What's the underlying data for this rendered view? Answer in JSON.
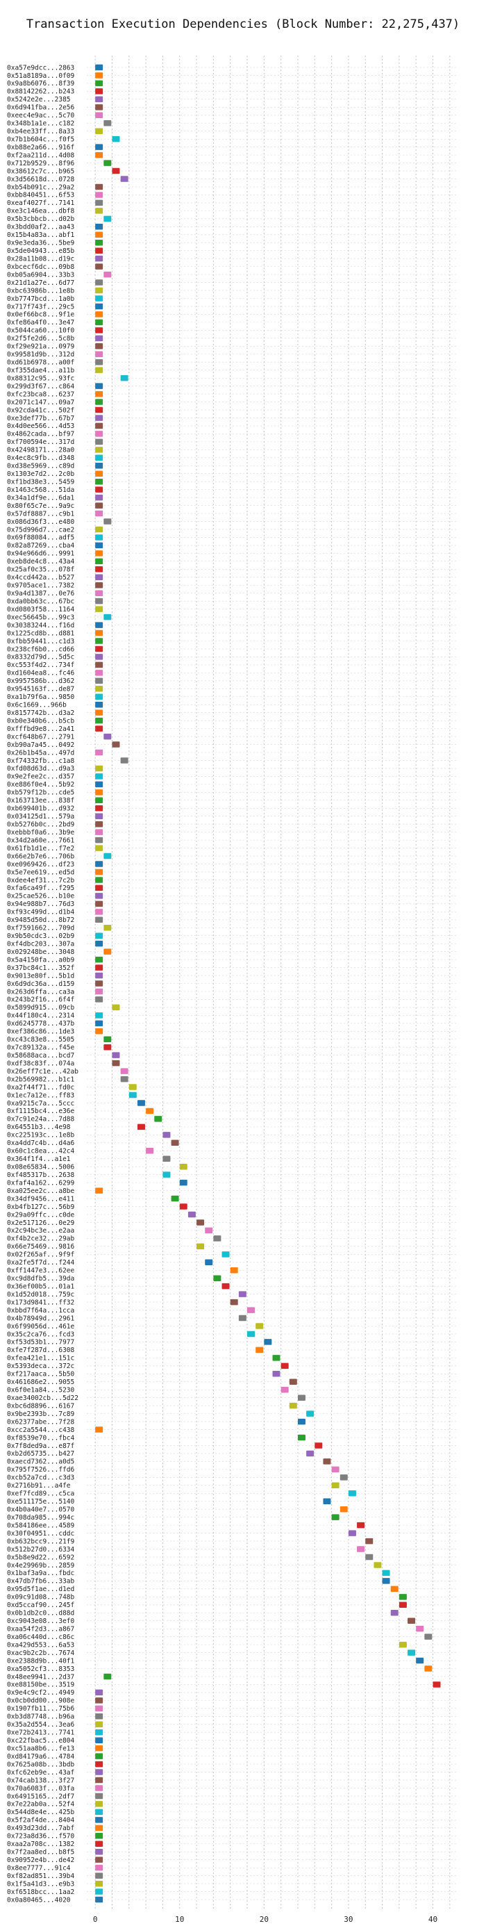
{
  "chart_data": {
    "type": "bar",
    "orientation": "horizontal-gantt",
    "title": "Transaction Execution Dependencies (Block Number: 22,275,437)",
    "xlabel": "",
    "ylabel": "",
    "xlim": [
      -1,
      43
    ],
    "xticks": [
      0,
      10,
      20,
      30,
      40
    ],
    "grid": true,
    "palette": [
      "#1f77b4",
      "#ff7f0e",
      "#2ca02c",
      "#d62728",
      "#9467bd",
      "#8c564b",
      "#e377c2",
      "#7f7f7f",
      "#bcbd22",
      "#17becf"
    ],
    "transactions": [
      {
        "label": "0xa57e9dcc...2863",
        "start": 0
      },
      {
        "label": "0x51a8189a...0f09",
        "start": 0
      },
      {
        "label": "0x9a8b6076...8f39",
        "start": 0
      },
      {
        "label": "0x88142262...b243",
        "start": 0
      },
      {
        "label": "0x5242e2e...2385",
        "start": 0
      },
      {
        "label": "0x6d941fba...2e56",
        "start": 0
      },
      {
        "label": "0xeec4e9ac...5c70",
        "start": 0
      },
      {
        "label": "0x348b1a1e...c182",
        "start": 1
      },
      {
        "label": "0xb4ee33ff...8a33",
        "start": 0
      },
      {
        "label": "0x7b1b604c...f0f5",
        "start": 2
      },
      {
        "label": "0xb88e2a66...916f",
        "start": 0
      },
      {
        "label": "0xf2aa211d...4d08",
        "start": 0
      },
      {
        "label": "0x712b9529...8f96",
        "start": 1
      },
      {
        "label": "0x38612c7c...b965",
        "start": 2
      },
      {
        "label": "0x3d56618d...0728",
        "start": 3
      },
      {
        "label": "0xb54b091c...29a2",
        "start": 0
      },
      {
        "label": "0xbb840451...6f53",
        "start": 0
      },
      {
        "label": "0xeaf4027f...7141",
        "start": 0
      },
      {
        "label": "0xe3c146ea...dbf8",
        "start": 0
      },
      {
        "label": "0x5b3cbbcb...d02b",
        "start": 1
      },
      {
        "label": "0x3bdd0af2...aa43",
        "start": 0
      },
      {
        "label": "0x15b4a83a...abf1",
        "start": 0
      },
      {
        "label": "0x9e3eda36...5be9",
        "start": 0
      },
      {
        "label": "0x5de04943...e85b",
        "start": 0
      },
      {
        "label": "0x28a11b08...d19c",
        "start": 0
      },
      {
        "label": "0xbcecf6dc...09b8",
        "start": 0
      },
      {
        "label": "0xb05a6904...33b3",
        "start": 1
      },
      {
        "label": "0x21d1a27e...6d77",
        "start": 0
      },
      {
        "label": "0xbc63986b...1e8b",
        "start": 0
      },
      {
        "label": "0xb7747bcd...1a0b",
        "start": 0
      },
      {
        "label": "0x717f743f...29c5",
        "start": 0
      },
      {
        "label": "0x0ef66bc8...9f1e",
        "start": 0
      },
      {
        "label": "0xfe86a4f0...3e47",
        "start": 0
      },
      {
        "label": "0x5044ca60...10f0",
        "start": 0
      },
      {
        "label": "0x2f5fe2d6...5c8b",
        "start": 0
      },
      {
        "label": "0xf29e921a...0979",
        "start": 0
      },
      {
        "label": "0x99581d9b...312d",
        "start": 0
      },
      {
        "label": "0xd61b6978...a00f",
        "start": 0
      },
      {
        "label": "0xf355dae4...a11b",
        "start": 0
      },
      {
        "label": "0x88312c95...93fc",
        "start": 3
      },
      {
        "label": "0x299d3f67...c864",
        "start": 0
      },
      {
        "label": "0xfc23bca8...6237",
        "start": 0
      },
      {
        "label": "0x2071c147...09a7",
        "start": 0
      },
      {
        "label": "0x92cda41c...502f",
        "start": 0
      },
      {
        "label": "0xe3def77b...67b7",
        "start": 0
      },
      {
        "label": "0x4d0ee566...4d53",
        "start": 0
      },
      {
        "label": "0x4862cada...bf97",
        "start": 0
      },
      {
        "label": "0xf700594e...317d",
        "start": 0
      },
      {
        "label": "0x42498171...28a0",
        "start": 0
      },
      {
        "label": "0x4ec8c9fb...d348",
        "start": 0
      },
      {
        "label": "0xd38e5969...c89d",
        "start": 0
      },
      {
        "label": "0x1303e7d2...2c0b",
        "start": 0
      },
      {
        "label": "0xf1bd38e3...5459",
        "start": 0
      },
      {
        "label": "0x1463c568...51da",
        "start": 0
      },
      {
        "label": "0x34a1df9e...6da1",
        "start": 0
      },
      {
        "label": "0x80f65c7e...9a9c",
        "start": 0
      },
      {
        "label": "0x57df8887...c9b1",
        "start": 0
      },
      {
        "label": "0x086d36f3...e480",
        "start": 1
      },
      {
        "label": "0x75d996d7...cae2",
        "start": 0
      },
      {
        "label": "0x69f88084...adf5",
        "start": 0
      },
      {
        "label": "0x82a87269...cba4",
        "start": 0
      },
      {
        "label": "0x94e966d6...9991",
        "start": 0
      },
      {
        "label": "0xeb8de4c8...43a4",
        "start": 0
      },
      {
        "label": "0x25af0c35...078f",
        "start": 0
      },
      {
        "label": "0x4ccd442a...b527",
        "start": 0
      },
      {
        "label": "0x9705ace1...7382",
        "start": 0
      },
      {
        "label": "0x9a4d1387...0e76",
        "start": 0
      },
      {
        "label": "0xda0bb63c...67bc",
        "start": 0
      },
      {
        "label": "0xd0803f58...1164",
        "start": 0
      },
      {
        "label": "0xec56645b...99c3",
        "start": 1
      },
      {
        "label": "0x30383244...f16d",
        "start": 0
      },
      {
        "label": "0x1225cd8b...d881",
        "start": 0
      },
      {
        "label": "0xfbb59441...c1d3",
        "start": 0
      },
      {
        "label": "0x238cf6b0...cd66",
        "start": 0
      },
      {
        "label": "0x8332d79d...5d5c",
        "start": 0
      },
      {
        "label": "0xc553f4d2...734f",
        "start": 0
      },
      {
        "label": "0xd1604ea8...fc46",
        "start": 0
      },
      {
        "label": "0x9957586b...d362",
        "start": 0
      },
      {
        "label": "0x9545163f...de87",
        "start": 0
      },
      {
        "label": "0xa1b79f6a...9850",
        "start": 0
      },
      {
        "label": "0x6c1669...966b",
        "start": 0
      },
      {
        "label": "0x8157742b...d3a2",
        "start": 0
      },
      {
        "label": "0xb0e340b6...b5cb",
        "start": 0
      },
      {
        "label": "0xfffbd9e8...2a41",
        "start": 0
      },
      {
        "label": "0xcf648b67...2791",
        "start": 1
      },
      {
        "label": "0xb90a7a45...0492",
        "start": 2
      },
      {
        "label": "0x26b1b45a...497d",
        "start": 0
      },
      {
        "label": "0xf74332fb...c1a8",
        "start": 3
      },
      {
        "label": "0xfd08d63d...d9a3",
        "start": 0
      },
      {
        "label": "0x9e2fee2c...d357",
        "start": 0
      },
      {
        "label": "0xe886f0e4...5b92",
        "start": 0
      },
      {
        "label": "0xb579f12b...cde5",
        "start": 0
      },
      {
        "label": "0x163713ee...838f",
        "start": 0
      },
      {
        "label": "0xb699401b...d932",
        "start": 0
      },
      {
        "label": "0x034125d1...579a",
        "start": 0
      },
      {
        "label": "0xb5276b0c...2bd9",
        "start": 0
      },
      {
        "label": "0xebbbf0a6...3b9e",
        "start": 0
      },
      {
        "label": "0x34d2a60e...7661",
        "start": 0
      },
      {
        "label": "0x61fb1d1e...f7e2",
        "start": 0
      },
      {
        "label": "0x66e2b7e6...706b",
        "start": 1
      },
      {
        "label": "0xe0969426...df23",
        "start": 0
      },
      {
        "label": "0x5e7ee619...ed5d",
        "start": 0
      },
      {
        "label": "0xdee4ef31...7c2b",
        "start": 0
      },
      {
        "label": "0xfa6ca49f...f295",
        "start": 0
      },
      {
        "label": "0x25cae526...b10e",
        "start": 0
      },
      {
        "label": "0x94e988b7...76d3",
        "start": 0
      },
      {
        "label": "0xf93c499d...d1b4",
        "start": 0
      },
      {
        "label": "0x9485d50d...8b72",
        "start": 0
      },
      {
        "label": "0xf7591662...709d",
        "start": 1
      },
      {
        "label": "0x9b50cdc3...02b9",
        "start": 0
      },
      {
        "label": "0xf4dbc203...307a",
        "start": 0
      },
      {
        "label": "0x029248be...3048",
        "start": 1
      },
      {
        "label": "0x5a4150fa...a0b9",
        "start": 0
      },
      {
        "label": "0x37bc84c1...352f",
        "start": 0
      },
      {
        "label": "0x9013e80f...5b1d",
        "start": 0
      },
      {
        "label": "0x6d9dc36a...d159",
        "start": 0
      },
      {
        "label": "0x263d6ffa...ca3a",
        "start": 0
      },
      {
        "label": "0x243b2f16...6f4f",
        "start": 0
      },
      {
        "label": "0x5899d915...09cb",
        "start": 2
      },
      {
        "label": "0x44f180c4...2314",
        "start": 0
      },
      {
        "label": "0xd6245778...437b",
        "start": 0
      },
      {
        "label": "0xef386c86...1de3",
        "start": 0
      },
      {
        "label": "0xc43c83e8...5505",
        "start": 1
      },
      {
        "label": "0x7c89132a...f45e",
        "start": 1
      },
      {
        "label": "0x58688aca...bcd7",
        "start": 2
      },
      {
        "label": "0xdf38c83f...074a",
        "start": 2
      },
      {
        "label": "0x26eff7c1e...42ab",
        "start": 3
      },
      {
        "label": "0x2b569982...b1c1",
        "start": 3
      },
      {
        "label": "0xa2f44f71...fd0c",
        "start": 4
      },
      {
        "label": "0x1ec7a12e...ff83",
        "start": 4
      },
      {
        "label": "0xa9215c7a...5ccc",
        "start": 5
      },
      {
        "label": "0xf1115bc4...e36e",
        "start": 6
      },
      {
        "label": "0x7c91e24a...7d88",
        "start": 7
      },
      {
        "label": "0x64551b3...4e98",
        "start": 5
      },
      {
        "label": "0xc225193c...1e8b",
        "start": 8
      },
      {
        "label": "0xa4dd7c4b...d4a6",
        "start": 9
      },
      {
        "label": "0x60c1c8ea...42c4",
        "start": 6
      },
      {
        "label": "0x364f1f4...a1e1",
        "start": 8
      },
      {
        "label": "0x08e65834...5006",
        "start": 10
      },
      {
        "label": "0xf485317b...2638",
        "start": 8
      },
      {
        "label": "0xfaf4a162...6299",
        "start": 10
      },
      {
        "label": "0xa025ee2c...a8be",
        "start": 0
      },
      {
        "label": "0x34df9456...e411",
        "start": 9
      },
      {
        "label": "0xb4fb127c...56b9",
        "start": 10
      },
      {
        "label": "0x29a09ffc...c0de",
        "start": 11
      },
      {
        "label": "0x2e517126...0e29",
        "start": 12
      },
      {
        "label": "0x2c94bc3e...e2aa",
        "start": 13
      },
      {
        "label": "0xf4b2ce32...29ab",
        "start": 14
      },
      {
        "label": "0x66e75469...9816",
        "start": 12
      },
      {
        "label": "0x02f265af...9f9f",
        "start": 15
      },
      {
        "label": "0xa2fe5f7d...f244",
        "start": 13
      },
      {
        "label": "0xff1447e3...62ee",
        "start": 16
      },
      {
        "label": "0xc9d8dfb5...39da",
        "start": 14
      },
      {
        "label": "0x36ef00b5...01a1",
        "start": 15
      },
      {
        "label": "0x1d52d018...759c",
        "start": 17
      },
      {
        "label": "0x173d9841...ff32",
        "start": 16
      },
      {
        "label": "0xbbd7f64a...1cca",
        "start": 18
      },
      {
        "label": "0x4b78949d...2961",
        "start": 17
      },
      {
        "label": "0x6f99056d...461e",
        "start": 19
      },
      {
        "label": "0x35c2ca76...fcd3",
        "start": 18
      },
      {
        "label": "0xf53d53b1...7977",
        "start": 20
      },
      {
        "label": "0xfe7f287d...6308",
        "start": 19
      },
      {
        "label": "0xfea421e1...151c",
        "start": 21
      },
      {
        "label": "0x5393deca...372c",
        "start": 22
      },
      {
        "label": "0xf217aaca...5b50",
        "start": 21
      },
      {
        "label": "0x461686e2...9055",
        "start": 23
      },
      {
        "label": "0x6f0e1a84...5230",
        "start": 22
      },
      {
        "label": "0xae34002cb...5d22",
        "start": 24
      },
      {
        "label": "0xbc6d8896...6167",
        "start": 23
      },
      {
        "label": "0x9be2393b...7c89",
        "start": 25
      },
      {
        "label": "0x62377abe...7f28",
        "start": 24
      },
      {
        "label": "0xcc2a5544...c438",
        "start": 0
      },
      {
        "label": "0xf8539e70...fbc4",
        "start": 24
      },
      {
        "label": "0x7f8ded9a...e87f",
        "start": 26
      },
      {
        "label": "0xb2d65735...b427",
        "start": 25
      },
      {
        "label": "0xaecd7362...a0d5",
        "start": 27
      },
      {
        "label": "0x795f7526...ffd6",
        "start": 28
      },
      {
        "label": "0xcb52a7cd...c3d3",
        "start": 29
      },
      {
        "label": "0x2716b91...a4fe",
        "start": 28
      },
      {
        "label": "0xef7fcd89...c5ca",
        "start": 30
      },
      {
        "label": "0xe511175e...5140",
        "start": 27
      },
      {
        "label": "0x4b0a40e7...0570",
        "start": 29
      },
      {
        "label": "0x708da985...994c",
        "start": 28
      },
      {
        "label": "0x584186ee...4589",
        "start": 31
      },
      {
        "label": "0x30f04951...cddc",
        "start": 30
      },
      {
        "label": "0xb632bcc9...21f9",
        "start": 32
      },
      {
        "label": "0x512b27d0...6334",
        "start": 31
      },
      {
        "label": "0x5b8e9d22...6592",
        "start": 32
      },
      {
        "label": "0x4e29969b...2859",
        "start": 33
      },
      {
        "label": "0x1baf3a9a...fbdc",
        "start": 34
      },
      {
        "label": "0x47db7fb6...33ab",
        "start": 34
      },
      {
        "label": "0x95d5f1ae...d1ed",
        "start": 35
      },
      {
        "label": "0x09c91d08...748b",
        "start": 36
      },
      {
        "label": "0xd5ccaf90...245f",
        "start": 36
      },
      {
        "label": "0x0b1db2c0...d88d",
        "start": 35
      },
      {
        "label": "0xc9043e08...3ef0",
        "start": 37
      },
      {
        "label": "0xaa54f2d3...a867",
        "start": 38
      },
      {
        "label": "0xa06c440d...c86c",
        "start": 39
      },
      {
        "label": "0xa429d553...6a53",
        "start": 36
      },
      {
        "label": "0xac9b2c2b...7674",
        "start": 37
      },
      {
        "label": "0xe2388d9b...40f1",
        "start": 38
      },
      {
        "label": "0xa5052cf3...8353",
        "start": 39
      },
      {
        "label": "0x48ee9941...2d37",
        "start": 1
      },
      {
        "label": "0xe88150be...3519",
        "start": 40
      },
      {
        "label": "0x9e4c9cf2...4949",
        "start": 0
      },
      {
        "label": "0x0cb0dd00...908e",
        "start": 0
      },
      {
        "label": "0x1907fb11...75b6",
        "start": 0
      },
      {
        "label": "0xb3d87748...b96a",
        "start": 0
      },
      {
        "label": "0x35a2d554...3ea6",
        "start": 0
      },
      {
        "label": "0xe72b2413...7741",
        "start": 0
      },
      {
        "label": "0xc22fbac5...e804",
        "start": 0
      },
      {
        "label": "0xc51aa8b6...fe13",
        "start": 0
      },
      {
        "label": "0xd84179a6...4784",
        "start": 0
      },
      {
        "label": "0x7625a08b...3bdb",
        "start": 0
      },
      {
        "label": "0xfc62eb9e...43af",
        "start": 0
      },
      {
        "label": "0x74cab138...3f27",
        "start": 0
      },
      {
        "label": "0x70a6083f...03fa",
        "start": 0
      },
      {
        "label": "0x64915165...2df7",
        "start": 0
      },
      {
        "label": "0x7e22ab0a...52f4",
        "start": 0
      },
      {
        "label": "0x544d8e4e...425b",
        "start": 0
      },
      {
        "label": "0x5f2af4de...8404",
        "start": 0
      },
      {
        "label": "0x493d23dd...7abf",
        "start": 0
      },
      {
        "label": "0x723a8d36...f570",
        "start": 0
      },
      {
        "label": "0xaa2a708c...1382",
        "start": 0
      },
      {
        "label": "0x7f2aa8ed...b8f5",
        "start": 0
      },
      {
        "label": "0x90952e4b...de42",
        "start": 0
      },
      {
        "label": "0x8ee7777...91c4",
        "start": 0
      },
      {
        "label": "0xf82ad851...39b4",
        "start": 0
      },
      {
        "label": "0x1f5a41d3...e9b3",
        "start": 0
      },
      {
        "label": "0xf6518bcc...1aa2",
        "start": 0
      },
      {
        "label": "0x0a80465...4020",
        "start": 0
      }
    ]
  }
}
